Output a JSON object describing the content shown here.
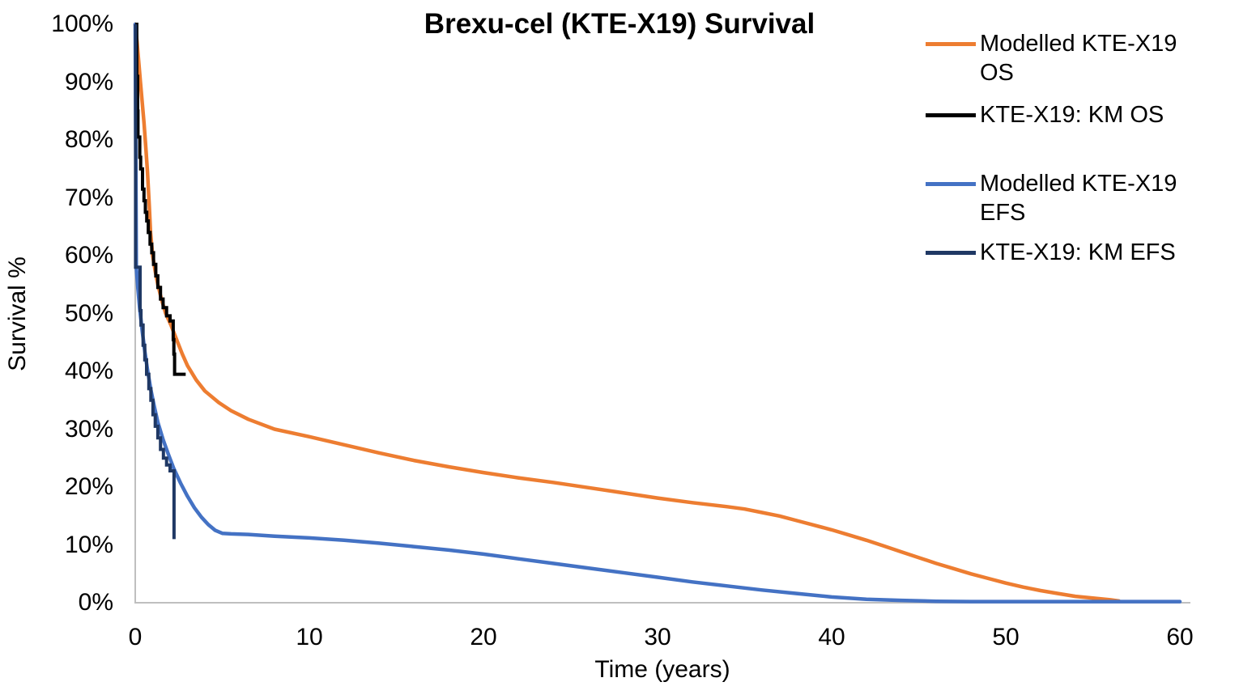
{
  "chart_data": {
    "type": "line",
    "title": "Brexu-cel (KTE-X19) Survival",
    "xlabel": "Time (years)",
    "ylabel": "Survival %",
    "xlim": [
      0,
      60
    ],
    "ylim": [
      0,
      100
    ],
    "grid": false,
    "legend_position": "right",
    "axis_color": "#BFBFBF",
    "x_ticks": [
      {
        "value": 0,
        "label": "0"
      },
      {
        "value": 10,
        "label": "10"
      },
      {
        "value": 20,
        "label": "20"
      },
      {
        "value": 30,
        "label": "30"
      },
      {
        "value": 40,
        "label": "40"
      },
      {
        "value": 50,
        "label": "50"
      },
      {
        "value": 60,
        "label": "60"
      }
    ],
    "y_ticks": [
      {
        "value": 0,
        "label": "0%"
      },
      {
        "value": 10,
        "label": "10%"
      },
      {
        "value": 20,
        "label": "20%"
      },
      {
        "value": 30,
        "label": "30%"
      },
      {
        "value": 40,
        "label": "40%"
      },
      {
        "value": 50,
        "label": "50%"
      },
      {
        "value": 60,
        "label": "60%"
      },
      {
        "value": 70,
        "label": "70%"
      },
      {
        "value": 80,
        "label": "80%"
      },
      {
        "value": 90,
        "label": "90%"
      },
      {
        "value": 100,
        "label": "100%"
      }
    ],
    "series": [
      {
        "name": "Modelled KTE-X19 OS",
        "color": "#ED7D31",
        "width": 4.5,
        "style": "smooth",
        "points": [
          [
            0,
            100
          ],
          [
            0.1,
            97
          ],
          [
            0.2,
            93.5
          ],
          [
            0.3,
            90
          ],
          [
            0.4,
            86.5
          ],
          [
            0.5,
            83
          ],
          [
            0.6,
            79
          ],
          [
            0.7,
            74.5
          ],
          [
            0.8,
            69
          ],
          [
            0.88,
            64
          ],
          [
            1.0,
            60
          ],
          [
            1.15,
            57.3
          ],
          [
            1.3,
            55
          ],
          [
            1.5,
            52.5
          ],
          [
            1.75,
            50
          ],
          [
            2.05,
            48
          ],
          [
            2.4,
            45.3
          ],
          [
            2.7,
            43
          ],
          [
            3.0,
            41
          ],
          [
            3.5,
            38.5
          ],
          [
            4.0,
            36.6
          ],
          [
            4.8,
            34.6
          ],
          [
            5.5,
            33.2
          ],
          [
            6.5,
            31.7
          ],
          [
            8,
            30
          ],
          [
            10,
            28.7
          ],
          [
            12,
            27.3
          ],
          [
            14,
            25.9
          ],
          [
            16,
            24.6
          ],
          [
            18,
            23.5
          ],
          [
            20,
            22.5
          ],
          [
            22,
            21.6
          ],
          [
            24,
            20.8
          ],
          [
            26,
            19.9
          ],
          [
            28,
            19
          ],
          [
            30,
            18.1
          ],
          [
            32,
            17.3
          ],
          [
            34,
            16.6
          ],
          [
            35,
            16.2
          ],
          [
            36,
            15.6
          ],
          [
            37,
            15
          ],
          [
            38,
            14.2
          ],
          [
            39,
            13.4
          ],
          [
            40,
            12.6
          ],
          [
            41,
            11.7
          ],
          [
            42,
            10.8
          ],
          [
            43,
            9.8
          ],
          [
            44,
            8.8
          ],
          [
            45,
            7.8
          ],
          [
            46,
            6.8
          ],
          [
            47,
            5.9
          ],
          [
            48,
            5
          ],
          [
            49,
            4.2
          ],
          [
            50,
            3.4
          ],
          [
            51,
            2.7
          ],
          [
            52,
            2.1
          ],
          [
            53,
            1.6
          ],
          [
            54,
            1.1
          ],
          [
            55,
            0.8
          ],
          [
            56,
            0.5
          ],
          [
            56.5,
            0.3
          ]
        ]
      },
      {
        "name": "Modelled KTE-X19 EFS",
        "color": "#4472C4",
        "width": 4.5,
        "style": "smooth",
        "points": [
          [
            0,
            100
          ],
          [
            0.06,
            58
          ],
          [
            0.15,
            54.5
          ],
          [
            0.25,
            51
          ],
          [
            0.4,
            47
          ],
          [
            0.55,
            43.5
          ],
          [
            0.7,
            40.3
          ],
          [
            0.9,
            36.8
          ],
          [
            1.1,
            33.8
          ],
          [
            1.3,
            31.2
          ],
          [
            1.6,
            28.2
          ],
          [
            1.9,
            25.7
          ],
          [
            2.2,
            23.3
          ],
          [
            2.6,
            20.7
          ],
          [
            3.0,
            18.4
          ],
          [
            3.4,
            16.4
          ],
          [
            3.8,
            14.8
          ],
          [
            4.2,
            13.5
          ],
          [
            4.6,
            12.5
          ],
          [
            5.0,
            12
          ],
          [
            5.5,
            11.9
          ],
          [
            6.5,
            11.8
          ],
          [
            8,
            11.5
          ],
          [
            10,
            11.2
          ],
          [
            12,
            10.8
          ],
          [
            14,
            10.3
          ],
          [
            16,
            9.7
          ],
          [
            18,
            9.1
          ],
          [
            20,
            8.4
          ],
          [
            22,
            7.6
          ],
          [
            24,
            6.8
          ],
          [
            26,
            6
          ],
          [
            28,
            5.2
          ],
          [
            30,
            4.4
          ],
          [
            32,
            3.6
          ],
          [
            34,
            2.9
          ],
          [
            36,
            2.2
          ],
          [
            38,
            1.6
          ],
          [
            40,
            1
          ],
          [
            42,
            0.6
          ],
          [
            44,
            0.4
          ],
          [
            46,
            0.25
          ],
          [
            48,
            0.2
          ],
          [
            60,
            0.2
          ]
        ]
      },
      {
        "name": "KTE-X19: KM OS",
        "color": "#000000",
        "width": 4,
        "style": "step",
        "points": [
          [
            0,
            100
          ],
          [
            0.09,
            100
          ],
          [
            0.09,
            91
          ],
          [
            0.14,
            91
          ],
          [
            0.14,
            85
          ],
          [
            0.16,
            85
          ],
          [
            0.16,
            80.5
          ],
          [
            0.26,
            80.5
          ],
          [
            0.26,
            77
          ],
          [
            0.31,
            77
          ],
          [
            0.31,
            75
          ],
          [
            0.42,
            75
          ],
          [
            0.42,
            71.5
          ],
          [
            0.5,
            71.5
          ],
          [
            0.5,
            69.5
          ],
          [
            0.58,
            69.5
          ],
          [
            0.58,
            67.5
          ],
          [
            0.66,
            67.5
          ],
          [
            0.66,
            66
          ],
          [
            0.75,
            66
          ],
          [
            0.75,
            64
          ],
          [
            0.85,
            64
          ],
          [
            0.85,
            62
          ],
          [
            0.95,
            62
          ],
          [
            0.95,
            60.5
          ],
          [
            1.05,
            60.5
          ],
          [
            1.05,
            58.5
          ],
          [
            1.18,
            58.5
          ],
          [
            1.18,
            56.5
          ],
          [
            1.3,
            56.5
          ],
          [
            1.3,
            54.5
          ],
          [
            1.45,
            54.5
          ],
          [
            1.45,
            52.5
          ],
          [
            1.6,
            52.5
          ],
          [
            1.6,
            51
          ],
          [
            1.8,
            51
          ],
          [
            1.8,
            49.6
          ],
          [
            2.0,
            49.6
          ],
          [
            2.0,
            48.7
          ],
          [
            2.18,
            48.7
          ],
          [
            2.18,
            45.5
          ],
          [
            2.22,
            45.5
          ],
          [
            2.22,
            43
          ],
          [
            2.26,
            43
          ],
          [
            2.26,
            39.5
          ],
          [
            2.9,
            39.5
          ]
        ]
      },
      {
        "name": "KTE-X19: KM EFS",
        "color": "#1F3864",
        "width": 4,
        "style": "step",
        "points": [
          [
            0.02,
            100
          ],
          [
            0.02,
            58
          ],
          [
            0.28,
            58
          ],
          [
            0.28,
            50.5
          ],
          [
            0.33,
            50.5
          ],
          [
            0.33,
            48
          ],
          [
            0.45,
            48
          ],
          [
            0.45,
            44.5
          ],
          [
            0.55,
            44.5
          ],
          [
            0.55,
            42
          ],
          [
            0.65,
            42
          ],
          [
            0.65,
            39.5
          ],
          [
            0.78,
            39.5
          ],
          [
            0.78,
            37
          ],
          [
            0.9,
            37
          ],
          [
            0.9,
            35
          ],
          [
            1.02,
            35
          ],
          [
            1.02,
            32.5
          ],
          [
            1.15,
            32.5
          ],
          [
            1.15,
            30.5
          ],
          [
            1.3,
            30.5
          ],
          [
            1.3,
            28.5
          ],
          [
            1.45,
            28.5
          ],
          [
            1.45,
            26.5
          ],
          [
            1.62,
            26.5
          ],
          [
            1.62,
            25
          ],
          [
            1.8,
            25
          ],
          [
            1.8,
            23.8
          ],
          [
            2.0,
            23.8
          ],
          [
            2.0,
            22.8
          ],
          [
            2.23,
            22.8
          ],
          [
            2.23,
            11
          ]
        ]
      }
    ],
    "legend": [
      {
        "label": "Modelled KTE-X19 OS",
        "lines": [
          "Modelled KTE-X19",
          "OS"
        ],
        "color": "#ED7D31"
      },
      {
        "label": "KTE-X19: KM OS",
        "lines": [
          "KTE-X19: KM OS"
        ],
        "color": "#000000"
      },
      {
        "label": "Modelled KTE-X19 EFS",
        "lines": [
          "Modelled KTE-X19",
          "EFS"
        ],
        "color": "#4472C4"
      },
      {
        "label": "KTE-X19: KM EFS",
        "lines": [
          "KTE-X19: KM EFS"
        ],
        "color": "#1F3864"
      }
    ]
  }
}
